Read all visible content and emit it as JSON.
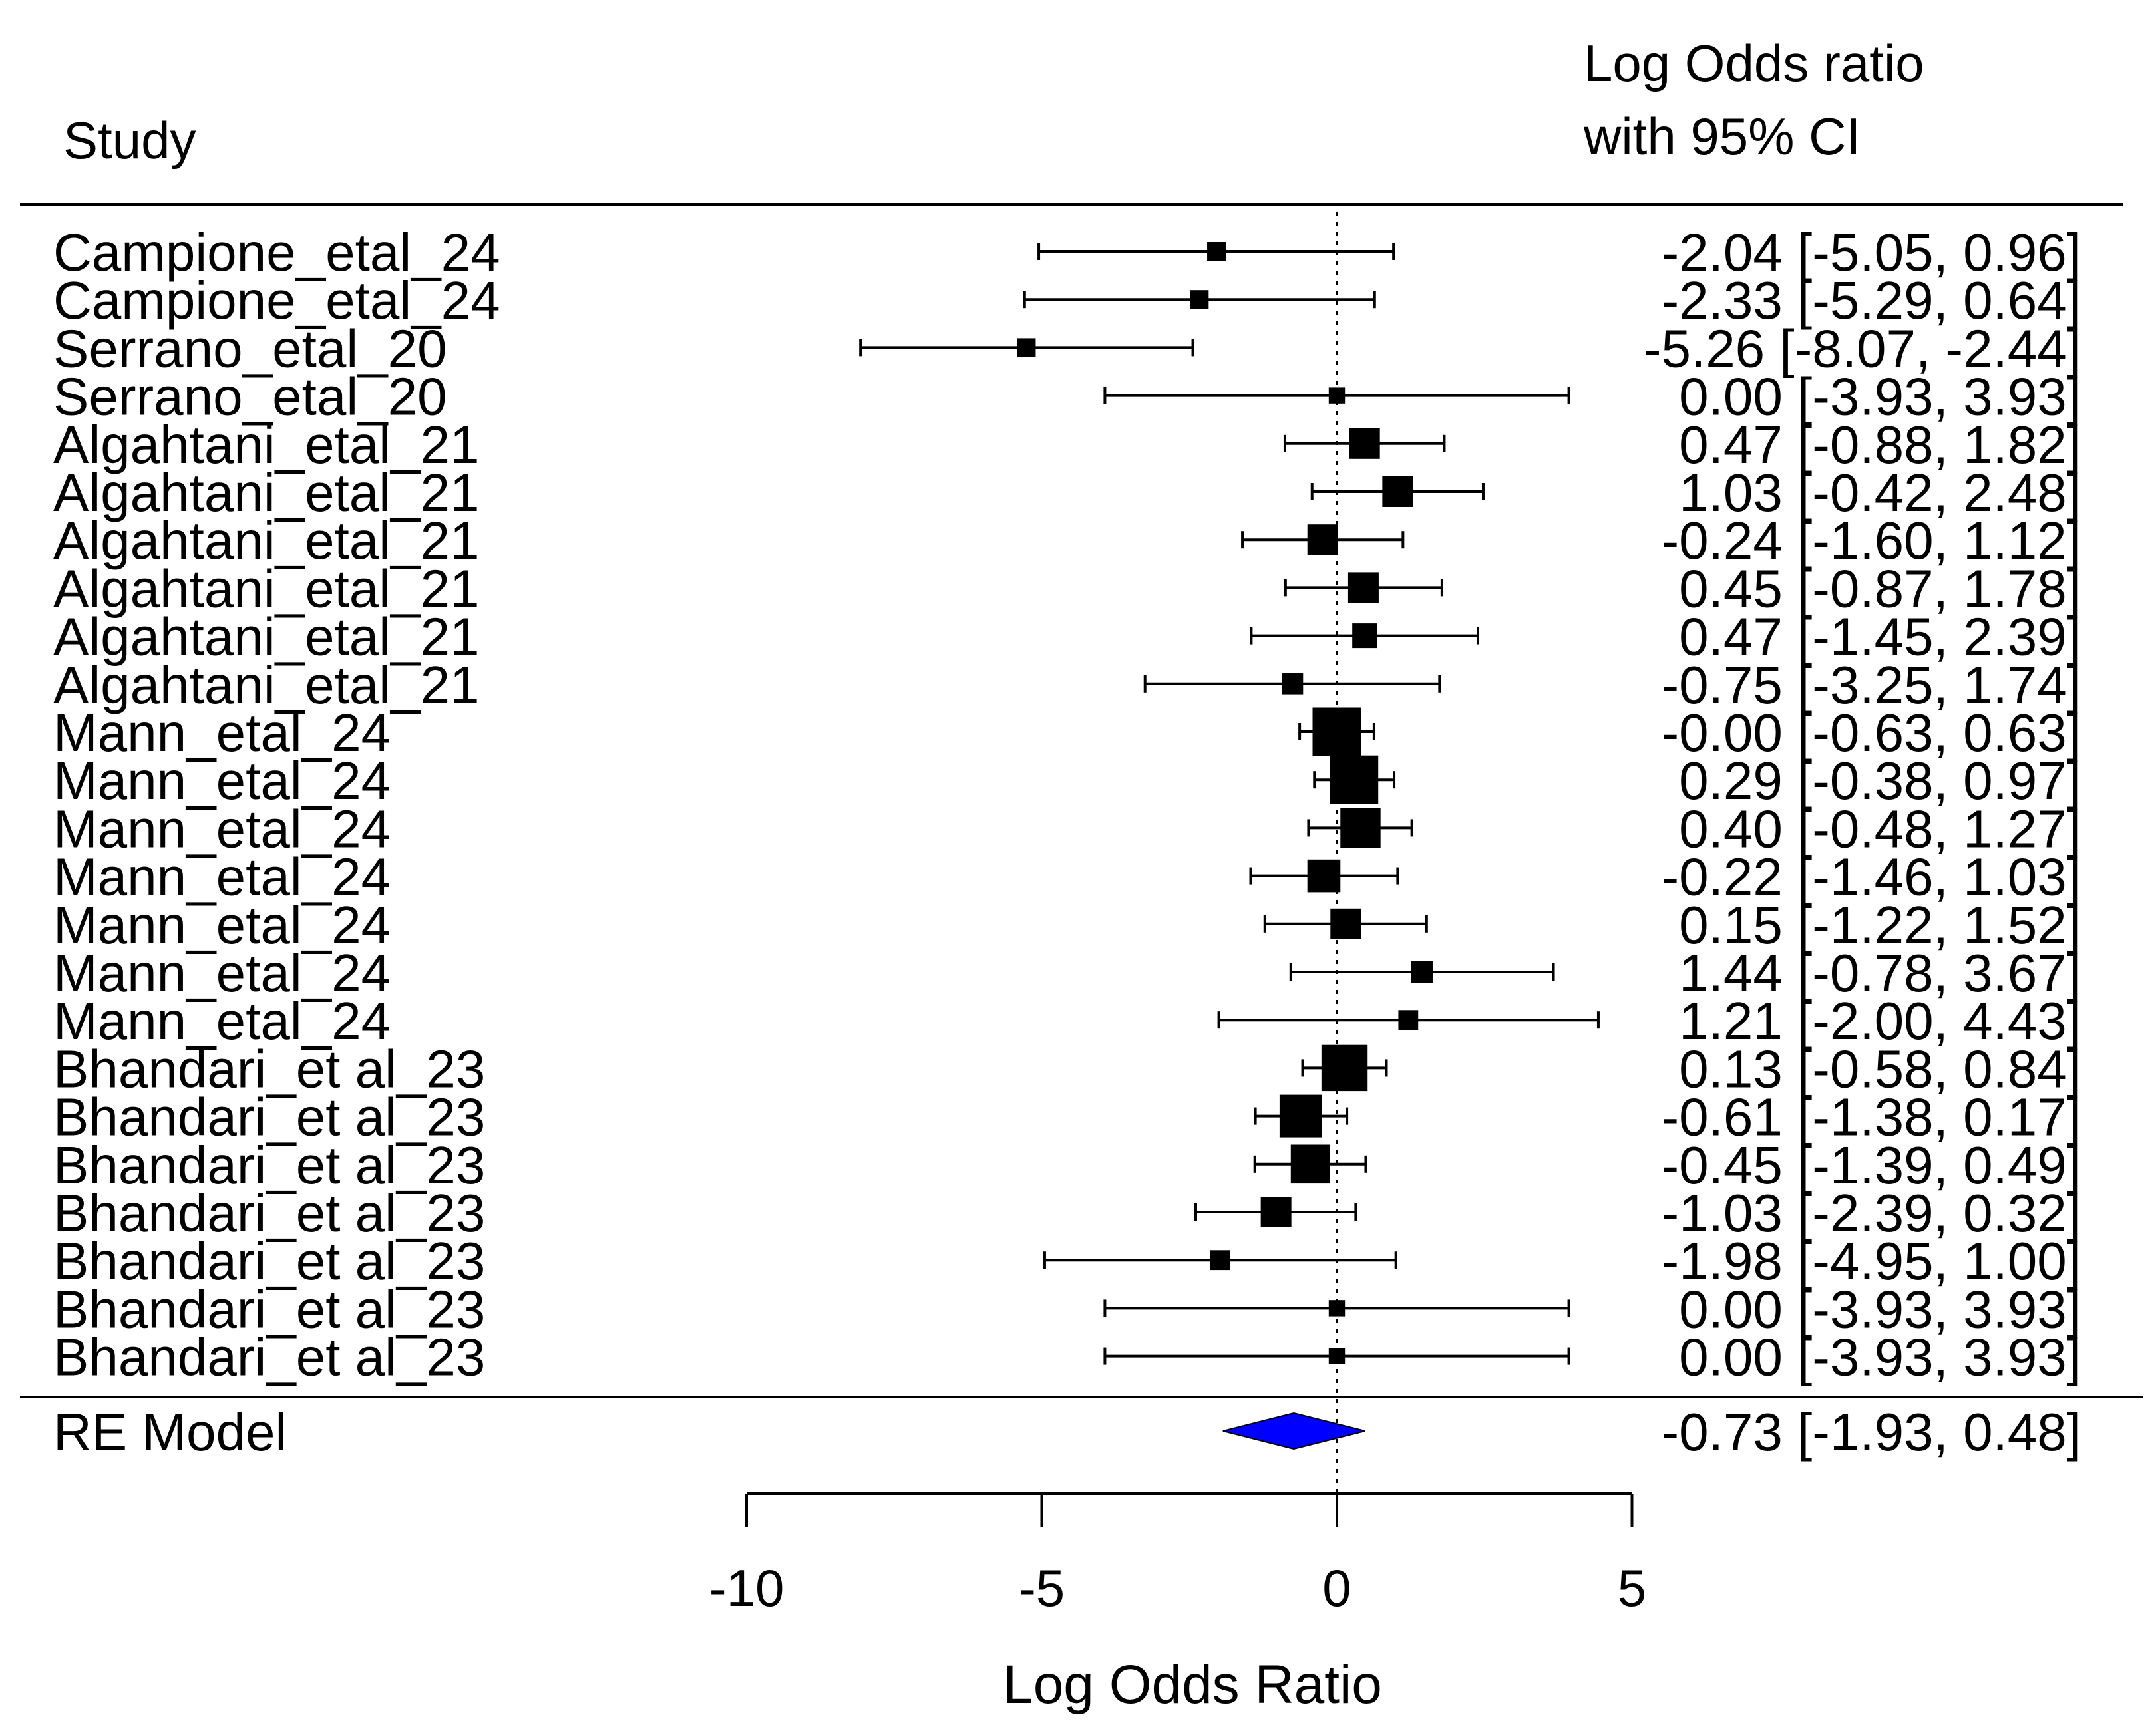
{
  "chart_data": {
    "type": "forest",
    "title": "",
    "header": {
      "study": "Study",
      "effect_line1": "Log Odds ratio",
      "effect_line2": "with 95% CI"
    },
    "xlabel": "Log Odds Ratio",
    "xlim": [
      -10,
      5
    ],
    "xticks": [
      "-10",
      "-5",
      "0",
      "5"
    ],
    "reference_line": 0,
    "studies": [
      {
        "label": "Campione_etal_24",
        "est": -2.04,
        "lo": -5.05,
        "hi": 0.96,
        "text": "-2.04 [-5.05,  0.96]",
        "weight": 1
      },
      {
        "label": "Campione_etal_24",
        "est": -2.33,
        "lo": -5.29,
        "hi": 0.64,
        "text": "-2.33 [-5.29,  0.64]",
        "weight": 1
      },
      {
        "label": "Serrano_etal_20",
        "est": -5.26,
        "lo": -8.07,
        "hi": -2.44,
        "text": "-5.26 [-8.07, -2.44]",
        "weight": 1
      },
      {
        "label": "Serrano_etal_20",
        "est": 0.0,
        "lo": -3.93,
        "hi": 3.93,
        "text": "0.00 [-3.93,  3.93]",
        "weight": 0.8
      },
      {
        "label": "Algahtani_etal_21",
        "est": 0.47,
        "lo": -0.88,
        "hi": 1.82,
        "text": "0.47 [-0.88,  1.82]",
        "weight": 2
      },
      {
        "label": "Algahtani_etal_21",
        "est": 1.03,
        "lo": -0.42,
        "hi": 2.48,
        "text": "1.03 [-0.42,  2.48]",
        "weight": 2
      },
      {
        "label": "Algahtani_etal_21",
        "est": -0.24,
        "lo": -1.6,
        "hi": 1.12,
        "text": "-0.24 [-1.60,  1.12]",
        "weight": 2
      },
      {
        "label": "Algahtani_etal_21",
        "est": 0.45,
        "lo": -0.87,
        "hi": 1.78,
        "text": "0.45 [-0.87,  1.78]",
        "weight": 2
      },
      {
        "label": "Algahtani_etal_21",
        "est": 0.47,
        "lo": -1.45,
        "hi": 2.39,
        "text": "0.47 [-1.45,  2.39]",
        "weight": 1.5
      },
      {
        "label": "Algahtani_etal_21",
        "est": -0.75,
        "lo": -3.25,
        "hi": 1.74,
        "text": "-0.75 [-3.25,  1.74]",
        "weight": 1.2
      },
      {
        "label": "Mann_etal_24",
        "est": 0.0,
        "lo": -0.63,
        "hi": 0.63,
        "text": "-0.00 [-0.63,  0.63]",
        "weight": 3.5
      },
      {
        "label": "Mann_etal_24",
        "est": 0.29,
        "lo": -0.38,
        "hi": 0.97,
        "text": "0.29 [-0.38,  0.97]",
        "weight": 3.5
      },
      {
        "label": "Mann_etal_24",
        "est": 0.4,
        "lo": -0.48,
        "hi": 1.27,
        "text": "0.40 [-0.48,  1.27]",
        "weight": 2.8
      },
      {
        "label": "Mann_etal_24",
        "est": -0.22,
        "lo": -1.46,
        "hi": 1.03,
        "text": "-0.22 [-1.46,  1.03]",
        "weight": 2.2
      },
      {
        "label": "Mann_etal_24",
        "est": 0.15,
        "lo": -1.22,
        "hi": 1.52,
        "text": "0.15 [-1.22,  1.52]",
        "weight": 2
      },
      {
        "label": "Mann_etal_24",
        "est": 1.44,
        "lo": -0.78,
        "hi": 3.67,
        "text": "1.44 [-0.78,  3.67]",
        "weight": 1.3
      },
      {
        "label": "Mann_etal_24",
        "est": 1.21,
        "lo": -2.0,
        "hi": 4.43,
        "text": "1.21 [-2.00,  4.43]",
        "weight": 1.1
      },
      {
        "label": "Bhandari_et al_23",
        "est": 0.13,
        "lo": -0.58,
        "hi": 0.84,
        "text": "0.13 [-0.58,  0.84]",
        "weight": 3.3
      },
      {
        "label": "Bhandari_et al_23",
        "est": -0.61,
        "lo": -1.38,
        "hi": 0.17,
        "text": "-0.61 [-1.38,  0.17]",
        "weight": 3
      },
      {
        "label": "Bhandari_et al_23",
        "est": -0.45,
        "lo": -1.39,
        "hi": 0.49,
        "text": "-0.45 [-1.39,  0.49]",
        "weight": 2.7
      },
      {
        "label": "Bhandari_et al_23",
        "est": -1.03,
        "lo": -2.39,
        "hi": 0.32,
        "text": "-1.03 [-2.39,  0.32]",
        "weight": 2
      },
      {
        "label": "Bhandari_et al_23",
        "est": -1.98,
        "lo": -4.95,
        "hi": 1.0,
        "text": "-1.98 [-4.95,  1.00]",
        "weight": 1.1
      },
      {
        "label": "Bhandari_et al_23",
        "est": 0.0,
        "lo": -3.93,
        "hi": 3.93,
        "text": "0.00 [-3.93,  3.93]",
        "weight": 0.8
      },
      {
        "label": "Bhandari_et al_23",
        "est": 0.0,
        "lo": -3.93,
        "hi": 3.93,
        "text": "0.00 [-3.93,  3.93]",
        "weight": 0.8
      }
    ],
    "summary": {
      "label": "RE Model",
      "est": -0.73,
      "lo": -1.93,
      "hi": 0.48,
      "text": "-0.73 [-1.93,  0.48]"
    },
    "colors": {
      "line": "#000000",
      "square": "#000000",
      "diamond_fill": "#0000FF",
      "diamond_stroke": "#000000"
    }
  }
}
